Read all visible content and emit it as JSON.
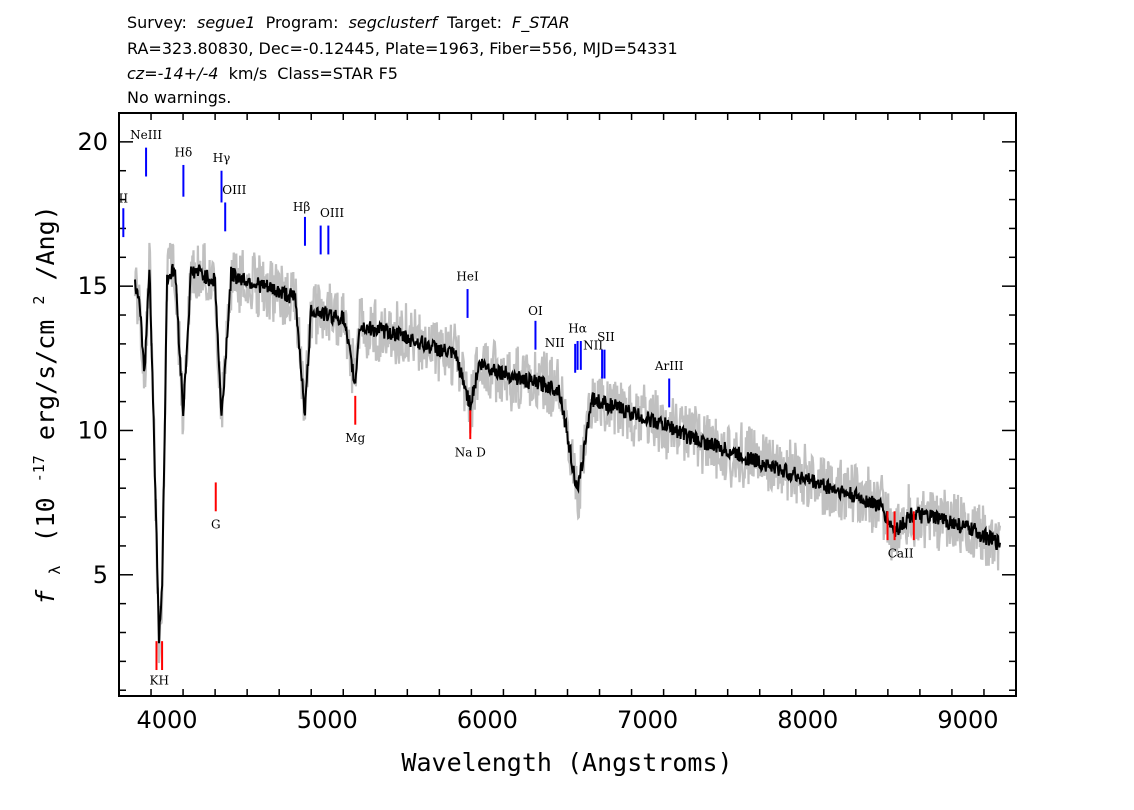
{
  "header": {
    "line1": {
      "survey_key": "Survey:",
      "survey": "segue1",
      "program_key": "Program:",
      "program": "segclusterf",
      "target_key": "Target:",
      "target": "F_STAR"
    },
    "line2": "RA=323.80830, Dec=-0.12445, Plate=1963, Fiber=556, MJD=54331",
    "line3": {
      "cz": "cz=-14+/-4",
      "unit": "km/s",
      "class": "Class=STAR F5"
    },
    "line4": "No warnings."
  },
  "colors": {
    "emission_line": "#0000ff",
    "absorption_line": "#ff0000",
    "flux": "#000000",
    "error_band": "#c0c0c0"
  },
  "chart_data": {
    "type": "line",
    "xlabel": "Wavelength (Angstroms)",
    "ylabel": "f_λ (10^-17 erg/s/cm^2/Ang)",
    "ylabel_parts": {
      "symbol": "f",
      "sub": "λ",
      "pre": "(10",
      "exp": "-17",
      "mid": " erg/s/cm",
      "exp2": "2",
      "post": "/Ang)"
    },
    "xlim": [
      3700,
      9300
    ],
    "ylim": [
      0.8,
      21.0
    ],
    "xticks": [
      4000,
      5000,
      6000,
      7000,
      8000,
      9000
    ],
    "yticks": [
      5,
      10,
      15,
      20
    ],
    "xtick_labels": [
      "4000",
      "5000",
      "6000",
      "7000",
      "8000",
      "9000"
    ],
    "ytick_labels": [
      "5",
      "10",
      "15",
      "20"
    ],
    "series": [
      {
        "x": [
          3800,
          3830,
          3860,
          3890,
          3920,
          3950,
          3970,
          4000,
          4050,
          4101,
          4150,
          4200,
          4250,
          4300,
          4340,
          4400,
          4500,
          4600,
          4700,
          4800,
          4861,
          4900,
          5000,
          5100,
          5175,
          5200,
          5300,
          5400,
          5500,
          5600,
          5700,
          5800,
          5893,
          5950,
          6050,
          6150,
          6250,
          6350,
          6450,
          6563,
          6650,
          6750,
          6850,
          6950,
          7050,
          7150,
          7250,
          7350,
          7450,
          7550,
          7650,
          7750,
          7850,
          7950,
          8050,
          8150,
          8250,
          8350,
          8450,
          8542,
          8650,
          8750,
          8850,
          8950,
          9050,
          9150,
          9200
        ],
        "y": [
          15.2,
          14.2,
          12.0,
          15.8,
          9.5,
          2.9,
          4.7,
          15.3,
          15.6,
          10.6,
          15.5,
          15.5,
          15.3,
          15.2,
          10.4,
          15.4,
          15.2,
          15.0,
          14.8,
          14.6,
          10.6,
          14.2,
          14.0,
          13.9,
          11.6,
          13.6,
          13.5,
          13.4,
          13.2,
          13.0,
          12.8,
          12.6,
          10.9,
          12.3,
          12.1,
          11.9,
          11.7,
          11.6,
          11.4,
          7.8,
          11.1,
          10.9,
          10.7,
          10.5,
          10.3,
          10.1,
          9.8,
          9.6,
          9.4,
          9.2,
          9.0,
          8.8,
          8.6,
          8.4,
          8.2,
          8.0,
          7.8,
          7.6,
          7.4,
          6.5,
          7.1,
          7.0,
          6.9,
          6.7,
          6.5,
          6.2,
          6.1
        ]
      }
    ],
    "emission_lines": [
      {
        "label": "OII",
        "x": 3727,
        "y_bottom": 16.7,
        "y_top": 17.7
      },
      {
        "label": "NeIII",
        "x": 3869,
        "y_bottom": 18.8,
        "y_top": 19.8
      },
      {
        "label": "Hδ",
        "x": 4102,
        "y_bottom": 18.1,
        "y_top": 19.2
      },
      {
        "label": "Hγ",
        "x": 4340,
        "y_bottom": 17.9,
        "y_top": 19.0
      },
      {
        "label": "OIII",
        "x": 4363,
        "y_bottom": 16.9,
        "y_top": 17.9
      },
      {
        "label": "Hβ",
        "x": 4861,
        "y_bottom": 16.4,
        "y_top": 17.4
      },
      {
        "label": "OIII",
        "x": 4959,
        "y_bottom": 16.1,
        "y_top": 17.1
      },
      {
        "label": "OIII",
        "x": 5007,
        "y_bottom": 16.1,
        "y_top": 17.1
      },
      {
        "label": "HeI",
        "x": 5876,
        "y_bottom": 13.9,
        "y_top": 14.9
      },
      {
        "label": "OI",
        "x": 6300,
        "y_bottom": 12.8,
        "y_top": 13.8
      },
      {
        "label": "NII",
        "x": 6548,
        "y_bottom": 12.0,
        "y_top": 13.0
      },
      {
        "label": "Hα",
        "x": 6563,
        "y_bottom": 12.1,
        "y_top": 13.1
      },
      {
        "label": "NII",
        "x": 6583,
        "y_bottom": 12.1,
        "y_top": 13.1
      },
      {
        "label": "SII",
        "x": 6716,
        "y_bottom": 11.8,
        "y_top": 12.8
      },
      {
        "label": "SII",
        "x": 6731,
        "y_bottom": 11.8,
        "y_top": 12.8
      },
      {
        "label": "ArIII",
        "x": 7135,
        "y_bottom": 10.8,
        "y_top": 11.8
      }
    ],
    "absorption_lines": [
      {
        "label": "K",
        "x": 3934,
        "y_top": 2.7,
        "y_bottom": 1.7
      },
      {
        "label": "H",
        "x": 3969,
        "y_top": 2.7,
        "y_bottom": 1.7
      },
      {
        "label": "G",
        "x": 4304,
        "y_top": 8.2,
        "y_bottom": 7.2
      },
      {
        "label": "Mg",
        "x": 5175,
        "y_top": 11.2,
        "y_bottom": 10.2
      },
      {
        "label": "Na D",
        "x": 5893,
        "y_top": 10.7,
        "y_bottom": 9.7
      },
      {
        "label": "CaII",
        "x": 8498,
        "y_top": 7.2,
        "y_bottom": 6.2
      },
      {
        "label": "CaII",
        "x": 8542,
        "y_top": 7.2,
        "y_bottom": 6.2
      },
      {
        "label": "CaII",
        "x": 8662,
        "y_top": 7.2,
        "y_bottom": 6.2
      }
    ],
    "emission_label_texts": [
      {
        "text": "II",
        "x": 3727,
        "y": 17.9
      },
      {
        "text": "NeIII",
        "x": 3869,
        "y": 20.1
      },
      {
        "text": "Hδ",
        "x": 4102,
        "y": 19.5
      },
      {
        "text": "Hγ",
        "x": 4340,
        "y": 19.3
      },
      {
        "text": "OIII",
        "x": 4420,
        "y": 18.2
      },
      {
        "text": "Hβ",
        "x": 4840,
        "y": 17.6
      },
      {
        "text": "OIII",
        "x": 5030,
        "y": 17.4
      },
      {
        "text": "HeI",
        "x": 5876,
        "y": 15.2
      },
      {
        "text": "OI",
        "x": 6300,
        "y": 14.0
      },
      {
        "text": "NII",
        "x": 6420,
        "y": 12.9
      },
      {
        "text": "Hα",
        "x": 6563,
        "y": 13.4
      },
      {
        "text": "NII",
        "x": 6660,
        "y": 12.8
      },
      {
        "text": "SII",
        "x": 6740,
        "y": 13.1
      },
      {
        "text": "ArIII",
        "x": 7135,
        "y": 12.1
      }
    ],
    "absorption_label_texts": [
      {
        "text": "KH",
        "x": 3951,
        "y": 1.2
      },
      {
        "text": "G",
        "x": 4304,
        "y": 6.6
      },
      {
        "text": "Mg",
        "x": 5175,
        "y": 9.6
      },
      {
        "text": "Na D",
        "x": 5893,
        "y": 9.1
      },
      {
        "text": "CaII",
        "x": 8580,
        "y": 5.6
      }
    ]
  }
}
